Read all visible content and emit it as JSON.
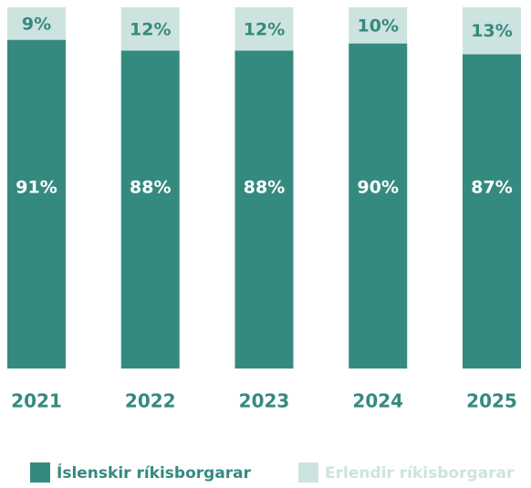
{
  "chart_data": {
    "type": "bar",
    "stacked": true,
    "categories": [
      "2021",
      "2022",
      "2023",
      "2024",
      "2025"
    ],
    "series": [
      {
        "name": "Íslenskir ríkisborgarar",
        "color": "#358a80",
        "values": [
          91,
          88,
          88,
          90,
          87
        ],
        "value_labels": [
          "91%",
          "88%",
          "88%",
          "90%",
          "87%"
        ]
      },
      {
        "name": "Erlendir ríkisborgarar",
        "color": "#cde3df",
        "values": [
          9,
          12,
          12,
          10,
          13
        ],
        "value_labels": [
          "9%",
          "12%",
          "12%",
          "10%",
          "13%"
        ]
      }
    ]
  }
}
